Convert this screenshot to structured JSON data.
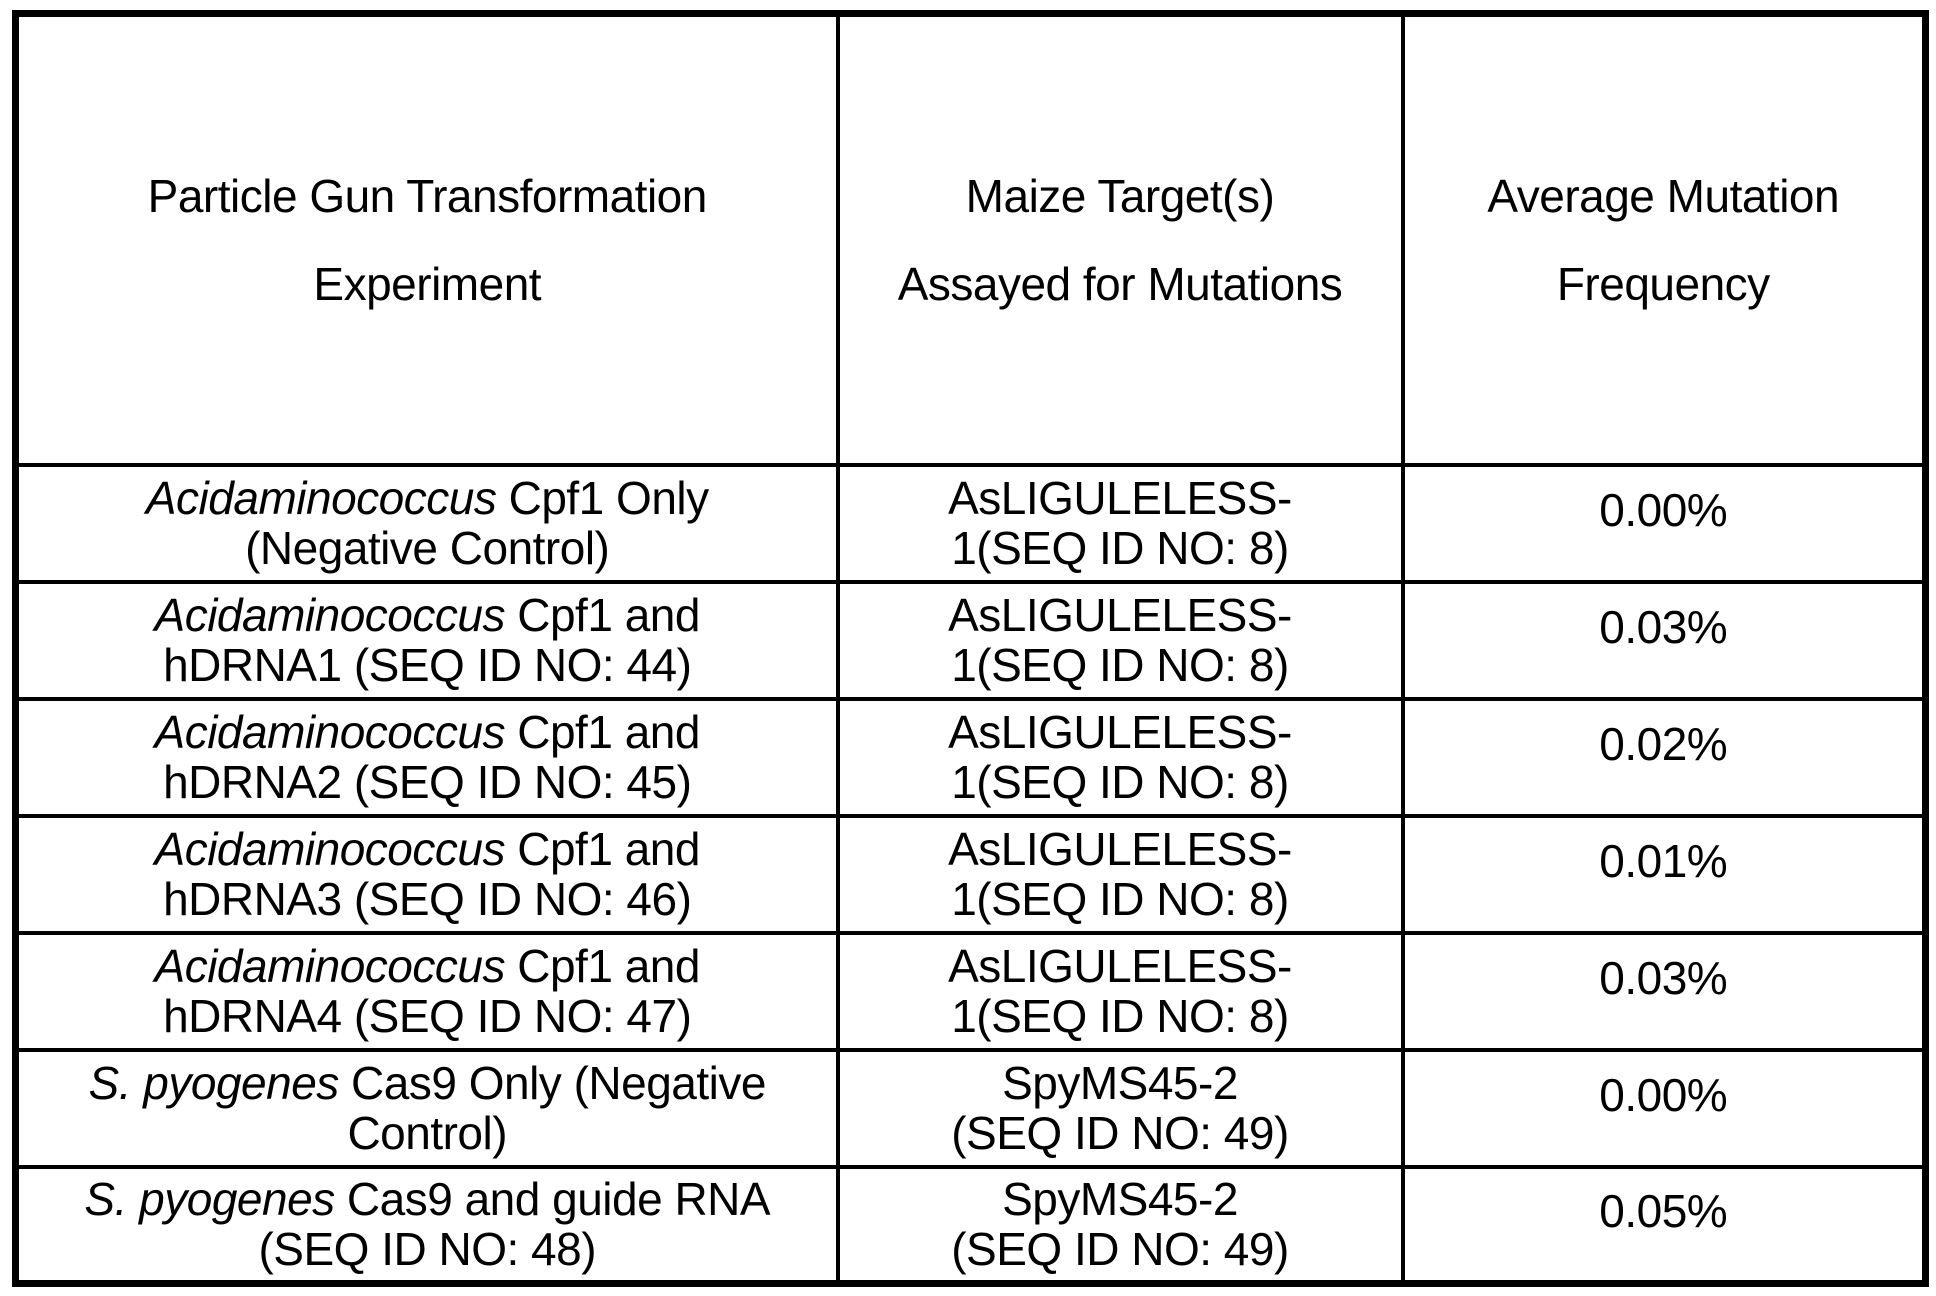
{
  "colors": {
    "background": "#ffffff",
    "text": "#000000",
    "border": "#000000"
  },
  "table": {
    "headers": [
      {
        "line1": "Particle Gun Transformation",
        "line2": "Experiment"
      },
      {
        "line1": "Maize Target(s)",
        "line2": "Assayed for Mutations"
      },
      {
        "line1": "Average Mutation",
        "line2": "Frequency"
      }
    ],
    "rows": [
      {
        "experiment_lines": [
          [
            {
              "text": "Acidaminococcus",
              "italic": true
            },
            {
              "text": " Cpf1 Only",
              "italic": false
            }
          ],
          [
            {
              "text": "(Negative Control)",
              "italic": false
            }
          ]
        ],
        "target_lines": [
          "AsLIGULELESS-",
          "1(SEQ ID NO: 8)"
        ],
        "frequency": "0.00%"
      },
      {
        "experiment_lines": [
          [
            {
              "text": "Acidaminococcus",
              "italic": true
            },
            {
              "text": " Cpf1 and",
              "italic": false
            }
          ],
          [
            {
              "text": "hDRNA1 (SEQ ID NO: 44)",
              "italic": false
            }
          ]
        ],
        "target_lines": [
          "AsLIGULELESS-",
          "1(SEQ ID NO: 8)"
        ],
        "frequency": "0.03%"
      },
      {
        "experiment_lines": [
          [
            {
              "text": "Acidaminococcus",
              "italic": true
            },
            {
              "text": " Cpf1 and",
              "italic": false
            }
          ],
          [
            {
              "text": "hDRNA2 (SEQ ID NO: 45)",
              "italic": false
            }
          ]
        ],
        "target_lines": [
          "AsLIGULELESS-",
          "1(SEQ ID NO: 8)"
        ],
        "frequency": "0.02%"
      },
      {
        "experiment_lines": [
          [
            {
              "text": "Acidaminococcus",
              "italic": true
            },
            {
              "text": " Cpf1 and",
              "italic": false
            }
          ],
          [
            {
              "text": "hDRNA3 (SEQ ID NO: 46)",
              "italic": false
            }
          ]
        ],
        "target_lines": [
          "AsLIGULELESS-",
          "1(SEQ ID NO: 8)"
        ],
        "frequency": "0.01%"
      },
      {
        "experiment_lines": [
          [
            {
              "text": "Acidaminococcus",
              "italic": true
            },
            {
              "text": " Cpf1 and",
              "italic": false
            }
          ],
          [
            {
              "text": "hDRNA4 (SEQ ID NO: 47)",
              "italic": false
            }
          ]
        ],
        "target_lines": [
          "AsLIGULELESS-",
          "1(SEQ ID NO: 8)"
        ],
        "frequency": "0.03%"
      },
      {
        "experiment_lines": [
          [
            {
              "text": "S. pyogenes",
              "italic": true
            },
            {
              "text": " Cas9 Only (Negative",
              "italic": false
            }
          ],
          [
            {
              "text": "Control)",
              "italic": false
            }
          ]
        ],
        "target_lines": [
          "SpyMS45-2",
          "(SEQ ID NO: 49)"
        ],
        "frequency": "0.00%"
      },
      {
        "experiment_lines": [
          [
            {
              "text": "S. pyogenes",
              "italic": true
            },
            {
              "text": " Cas9 and guide RNA",
              "italic": false
            }
          ],
          [
            {
              "text": "(SEQ ID NO: 48)",
              "italic": false
            }
          ]
        ],
        "target_lines": [
          "SpyMS45-2",
          "(SEQ ID NO: 49)"
        ],
        "frequency": "0.05%"
      }
    ]
  }
}
